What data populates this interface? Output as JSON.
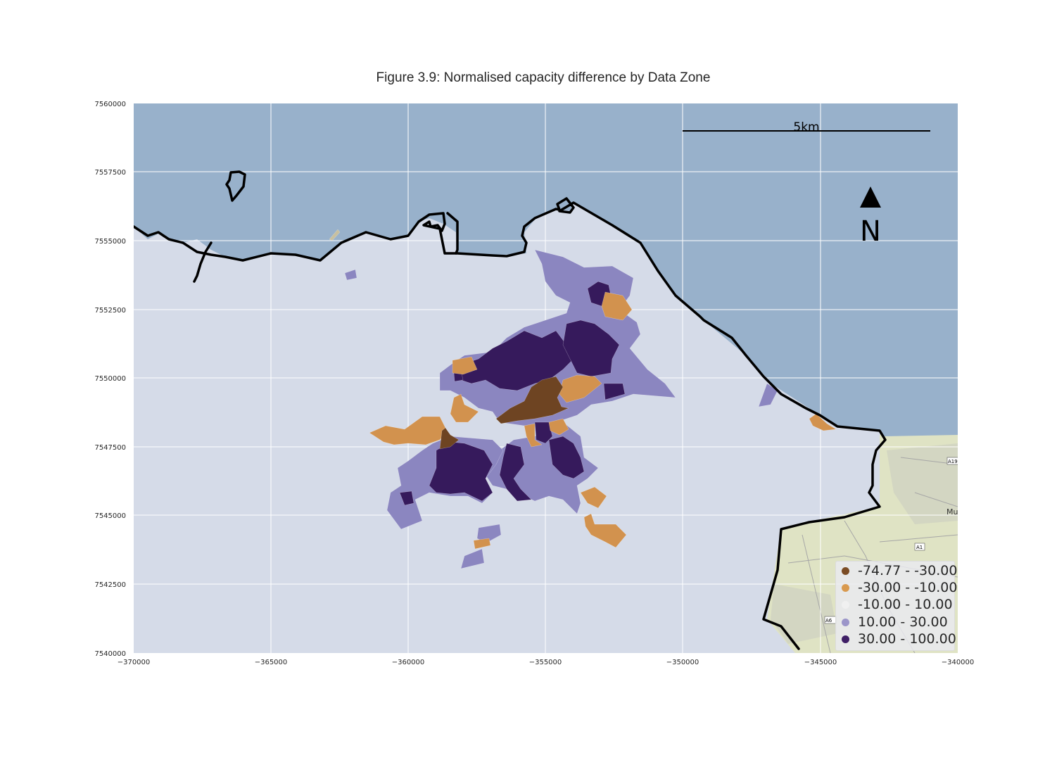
{
  "title": "Figure 3.9: Normalised capacity difference by Data Zone",
  "axes": {
    "x_ticks": [
      "−370000",
      "−365000",
      "−360000",
      "−355000",
      "−350000",
      "−345000",
      "−340000"
    ],
    "y_ticks": [
      "7560000",
      "7557500",
      "7555000",
      "7552500",
      "7550000",
      "7547500",
      "7545000",
      "7542500",
      "7540000"
    ],
    "xlim": [
      -370000,
      -340000
    ],
    "ylim": [
      7540000,
      7560000
    ]
  },
  "scale_bar": {
    "label": "5km"
  },
  "north_arrow": {
    "label": "N"
  },
  "legend": {
    "items": [
      {
        "label": "-74.77 - -30.00",
        "color": "#7b4c24"
      },
      {
        "label": "-30.00 - -10.00",
        "color": "#d99a4f"
      },
      {
        "label": "-10.00 - 10.00",
        "color": "#f0f0f0"
      },
      {
        "label": "10.00 - 30.00",
        "color": "#9b95c9"
      },
      {
        "label": "30.00 - 100.00",
        "color": "#3f1f66"
      }
    ]
  },
  "colors": {
    "sea": "#98b1cb",
    "land": "#d5dbe8",
    "coast": "#000000",
    "basemap_land": "#dfe3c4"
  },
  "basemap_labels": [
    "A19",
    "Mu",
    "A1",
    "A6"
  ]
}
